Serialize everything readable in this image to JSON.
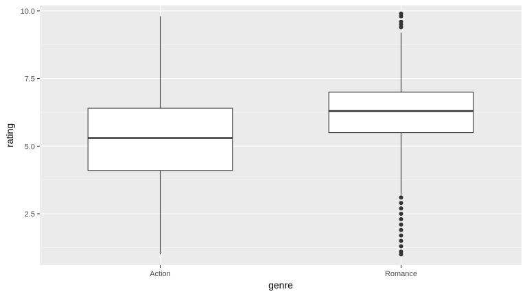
{
  "chart_data": {
    "type": "boxplot",
    "xlabel": "genre",
    "ylabel": "rating",
    "categories": [
      "Action",
      "Romance"
    ],
    "ylim": [
      0.6,
      10.2
    ],
    "yticks": [
      2.5,
      5.0,
      7.5,
      10.0
    ],
    "ytick_labels": [
      "2.5",
      "5.0",
      "7.5",
      "10.0"
    ],
    "grid": true,
    "boxes": [
      {
        "category": "Action",
        "whisker_low": 1.0,
        "q1": 4.1,
        "median": 5.3,
        "q3": 6.4,
        "whisker_high": 9.8,
        "outliers": []
      },
      {
        "category": "Romance",
        "whisker_low": 3.2,
        "q1": 5.5,
        "median": 6.3,
        "q3": 7.0,
        "whisker_high": 9.2,
        "outliers": [
          9.9,
          9.8,
          9.6,
          9.5,
          9.4,
          3.1,
          2.9,
          2.7,
          2.5,
          2.3,
          2.1,
          1.9,
          1.7,
          1.5,
          1.3,
          1.1,
          1.0
        ]
      }
    ],
    "colors": {
      "panel": "#ebebeb",
      "grid_major": "#ffffff",
      "box_fill": "#ffffff",
      "box_stroke": "#333333",
      "outlier": "#333333"
    }
  }
}
